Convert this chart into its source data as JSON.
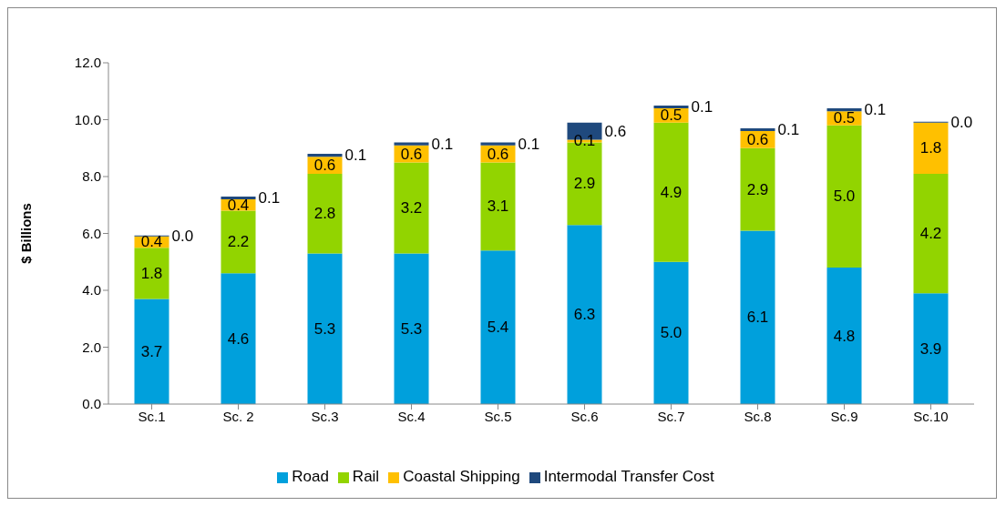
{
  "chart_data": {
    "type": "bar",
    "stacked": true,
    "ylabel": "$ Billions",
    "categories": [
      "Sc.1",
      "Sc. 2",
      "Sc.3",
      "Sc.4",
      "Sc.5",
      "Sc.6",
      "Sc.7",
      "Sc.8",
      "Sc.9",
      "Sc.10"
    ],
    "series": [
      {
        "name": "Road",
        "color": "#00a0dc",
        "values": [
          3.7,
          4.6,
          5.3,
          5.3,
          5.4,
          6.3,
          5.0,
          6.1,
          4.8,
          3.9
        ],
        "value_labels": [
          "3.7",
          "4.6",
          "5.3",
          "5.3",
          "5.4",
          "6.3",
          "5.0",
          "6.1",
          "4.8",
          "3.9"
        ]
      },
      {
        "name": "Rail",
        "color": "#92d400",
        "values": [
          1.8,
          2.2,
          2.8,
          3.2,
          3.1,
          2.9,
          4.9,
          2.9,
          5.0,
          4.2
        ],
        "value_labels": [
          "1.8",
          "2.2",
          "2.8",
          "3.2",
          "3.1",
          "2.9",
          "4.9",
          "2.9",
          "5.0",
          "4.2"
        ]
      },
      {
        "name": "Coastal Shipping",
        "color": "#ffc000",
        "values": [
          0.4,
          0.4,
          0.6,
          0.6,
          0.6,
          0.1,
          0.5,
          0.6,
          0.5,
          1.8
        ],
        "value_labels": [
          "0.4",
          "0.4",
          "0.6",
          "0.6",
          "0.6",
          "0.1",
          "0.5",
          "0.6",
          "0.5",
          "1.8"
        ]
      },
      {
        "name": "Intermodal Transfer Cost",
        "color": "#1f497d",
        "values": [
          0.0,
          0.1,
          0.1,
          0.1,
          0.1,
          0.6,
          0.1,
          0.1,
          0.1,
          0.0
        ],
        "value_labels": [
          "0.0",
          "0.1",
          "0.1",
          "0.1",
          "0.1",
          "0.6",
          "0.1",
          "0.1",
          "0.1",
          "0.0"
        ]
      }
    ],
    "ylim": [
      0,
      12
    ],
    "yticks": [
      {
        "value": 0,
        "label": "0.0"
      },
      {
        "value": 2,
        "label": "2.0"
      },
      {
        "value": 4,
        "label": "4.0"
      },
      {
        "value": 6,
        "label": "6.0"
      },
      {
        "value": 8,
        "label": "8.0"
      },
      {
        "value": 10,
        "label": "10.0"
      },
      {
        "value": 12,
        "label": "12.0"
      }
    ],
    "grid": false,
    "legend": "bottom"
  }
}
